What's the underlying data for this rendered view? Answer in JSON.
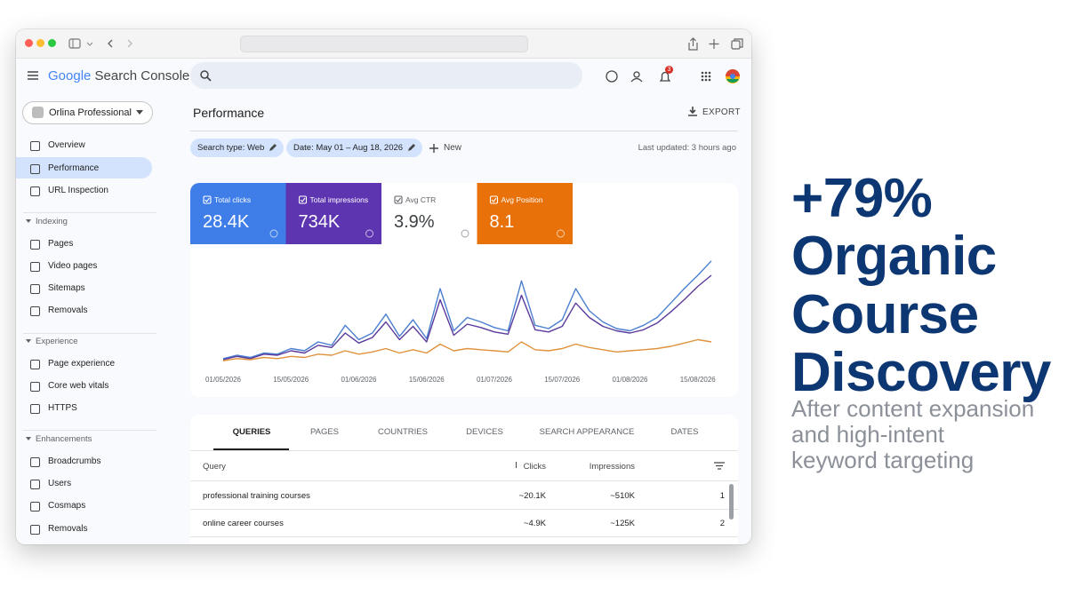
{
  "app": {
    "brand": "Google",
    "product": "Search Console",
    "notifications": "3"
  },
  "sidebar": {
    "property": "Orlina Professional",
    "top": [
      "Overview",
      "Performance",
      "URL Inspection"
    ],
    "sections": [
      {
        "title": "Indexing",
        "items": [
          "Pages",
          "Video pages",
          "Sitemaps",
          "Removals"
        ]
      },
      {
        "title": "Experience",
        "items": [
          "Page experience",
          "Core web vitals",
          "HTTPS"
        ]
      },
      {
        "title": "Enhancements",
        "items": [
          "Broadcrumbs",
          "Users",
          "Cosmaps",
          "Removals"
        ]
      }
    ]
  },
  "page": {
    "title": "Performance",
    "export": "EXPORT",
    "filters": [
      "Search type: Web",
      "Date: May 01 – Aug 18, 2026"
    ],
    "new": "New",
    "updated": "Last updated: 3 hours ago"
  },
  "metrics": [
    {
      "label": "Total clicks",
      "value": "28.4K"
    },
    {
      "label": "Total impressions",
      "value": "734K"
    },
    {
      "label": "Avg CTR",
      "value": "3.9%"
    },
    {
      "label": "Avg Position",
      "value": "8.1"
    }
  ],
  "chart_data": {
    "type": "line",
    "categories": [
      "01/05/2026",
      null,
      null,
      null,
      null,
      "15/05/2026",
      null,
      null,
      null,
      null,
      "01/06/2026",
      null,
      null,
      null,
      null,
      "15/06/2026",
      null,
      null,
      null,
      null,
      "01/07/2026",
      null,
      null,
      null,
      null,
      "15/07/2026",
      null,
      null,
      null,
      null,
      "01/08/2026",
      null,
      null,
      null,
      null,
      "15/08/2026",
      null
    ],
    "ylim": [
      0,
      100
    ],
    "series": [
      {
        "name": "Total clicks",
        "color": "#4a7fd0",
        "values": [
          5,
          8,
          6,
          10,
          9,
          14,
          12,
          20,
          17,
          35,
          22,
          28,
          45,
          25,
          40,
          23,
          68,
          30,
          42,
          38,
          33,
          30,
          75,
          35,
          32,
          40,
          68,
          48,
          38,
          32,
          30,
          35,
          42,
          55,
          68,
          80,
          93
        ]
      },
      {
        "name": "Total impressions",
        "color": "#5a3a9c",
        "values": [
          4,
          7,
          5,
          9,
          8,
          12,
          10,
          17,
          15,
          28,
          19,
          24,
          38,
          22,
          34,
          20,
          58,
          26,
          36,
          33,
          29,
          27,
          62,
          31,
          29,
          34,
          55,
          42,
          34,
          30,
          28,
          31,
          37,
          47,
          58,
          70,
          80
        ]
      },
      {
        "name": "Avg Position",
        "color": "#e0923c",
        "values": [
          3,
          5,
          4,
          6,
          5,
          7,
          6,
          9,
          8,
          12,
          9,
          11,
          14,
          10,
          13,
          10,
          18,
          12,
          14,
          13,
          12,
          11,
          20,
          13,
          12,
          14,
          18,
          15,
          13,
          11,
          12,
          13,
          14,
          16,
          19,
          22,
          20
        ]
      }
    ]
  },
  "table": {
    "tabs": [
      "QUERIES",
      "PAGES",
      "COUNTRIES",
      "DEVICES",
      "SEARCH APPEARANCE",
      "DATES"
    ],
    "columns": [
      "Query",
      "Clicks",
      "Impressions"
    ],
    "rows": [
      [
        "professional training courses",
        "~20.1K",
        "~510K",
        1
      ],
      [
        "online career courses",
        "~4.9K",
        "~125K",
        2
      ]
    ]
  },
  "headline": {
    "title_lines": [
      "+79%",
      "Organic",
      "Course",
      "Discovery"
    ],
    "subtitle_lines": [
      "After content expansion",
      "and high-intent",
      "keyword targeting"
    ]
  }
}
